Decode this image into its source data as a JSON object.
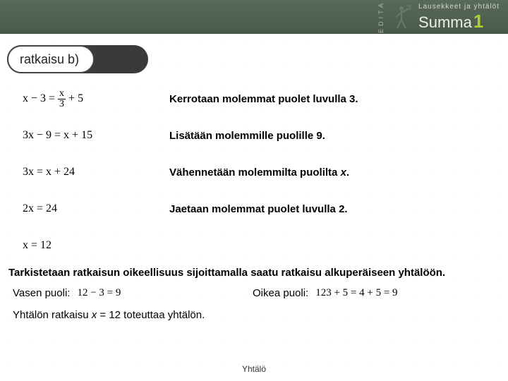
{
  "header": {
    "subtitle": "Lausekkeet ja yhtälöt",
    "brand": "Summa",
    "brand_number": "1",
    "publisher": "EDITA",
    "accent_color": "#aecf3b"
  },
  "tab": {
    "label": "ratkaisu b)"
  },
  "steps": [
    {
      "equation_html": "x − 3 = <span class='frac'><span class='n'>x</span><span class='d'>3</span></span> + 5",
      "desc": "Kerrotaan molemmat puolet luvulla 3."
    },
    {
      "equation_html": "3x − 9 = x + 15",
      "desc": "Lisätään molemmille puolille 9."
    },
    {
      "equation_html": "3x = x + 24",
      "desc": "Vähennetään molemmilta puolilta <span class='ital'>x</span>."
    },
    {
      "equation_html": "2x = 24",
      "desc": "Jaetaan molemmat puolet luvulla 2."
    },
    {
      "equation_html": "x = 12",
      "desc": ""
    }
  ],
  "check_line": "Tarkistetaan ratkaisun oikeellisuus sijoittamalla saatu ratkaisu alkuperäiseen yhtälöön.",
  "left": {
    "label": "Vasen puoli:",
    "equation": "12 − 3 = 9"
  },
  "right": {
    "label": "Oikea puoli:",
    "equation_html": "<span class='frac'><span class='n'>12</span><span class='d'>3</span></span> + 5 = 4 + 5 = 9"
  },
  "conclusion": {
    "prefix": "Yhtälön ratkaisu ",
    "var": "x",
    "rest": " = 12 toteuttaa yhtälön."
  },
  "footer": "Yhtälö"
}
